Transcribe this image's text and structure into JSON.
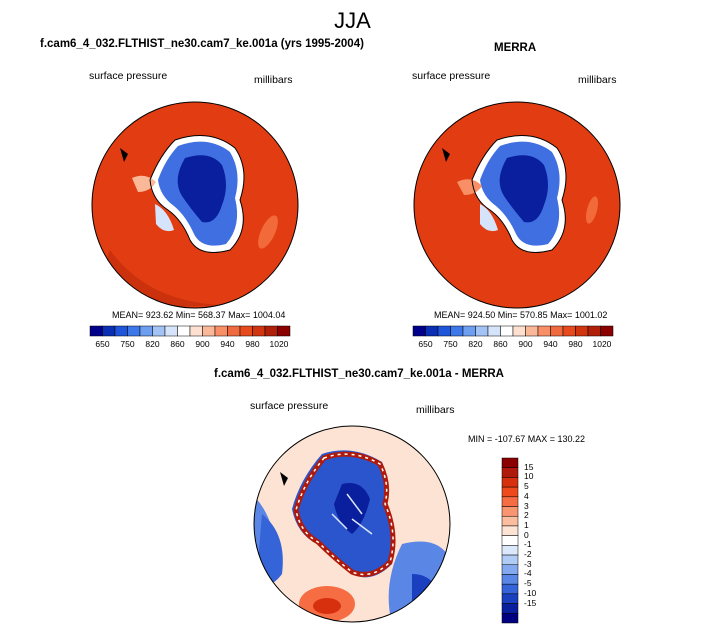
{
  "page": {
    "title": "JJA"
  },
  "panels": [
    {
      "title": "f.cam6_4_032.FLTHIST_ne30.cam7_ke.001a (yrs 1995-2004)",
      "left_label": "surface pressure",
      "right_label": "millibars",
      "stats": "MEAN= 923.62  Min= 568.37  Max= 1004.04"
    },
    {
      "title": "MERRA",
      "left_label": "surface pressure",
      "right_label": "millibars",
      "stats": "MEAN= 924.50  Min= 570.85  Max= 1001.02"
    },
    {
      "title": "f.cam6_4_032.FLTHIST_ne30.cam7_ke.001a - MERRA",
      "left_label": "surface pressure",
      "right_label": "millibars",
      "stats": "MIN = -107.67 MAX = 130.22"
    }
  ],
  "colorbar_abs": {
    "labels": [
      "650",
      "750",
      "820",
      "860",
      "900",
      "940",
      "980",
      "1020"
    ],
    "colors": [
      "#00008b",
      "#0a2fb5",
      "#1f55d8",
      "#3d78ea",
      "#6d9ef0",
      "#a3c2f5",
      "#d5e4fb",
      "#ffffff",
      "#fde0d0",
      "#fbb898",
      "#f88f66",
      "#f06a3f",
      "#e64a1d",
      "#d1350f",
      "#b02008",
      "#8b0000"
    ]
  },
  "colorbar_diff": {
    "labels": [
      "15",
      "10",
      "5",
      "4",
      "3",
      "2",
      "1",
      "0",
      "-1",
      "-2",
      "-3",
      "-4",
      "-5",
      "-10",
      "-15"
    ],
    "colors": [
      "#8b0000",
      "#b01a0a",
      "#d6300f",
      "#ee4a1e",
      "#f66c43",
      "#f99570",
      "#fbbd9f",
      "#fde3d3",
      "#ffffff",
      "#dbe7fb",
      "#b0cbf6",
      "#84a9ef",
      "#5a86e6",
      "#3464d8",
      "#1a40bf",
      "#0a1f9e",
      "#000080"
    ]
  }
}
